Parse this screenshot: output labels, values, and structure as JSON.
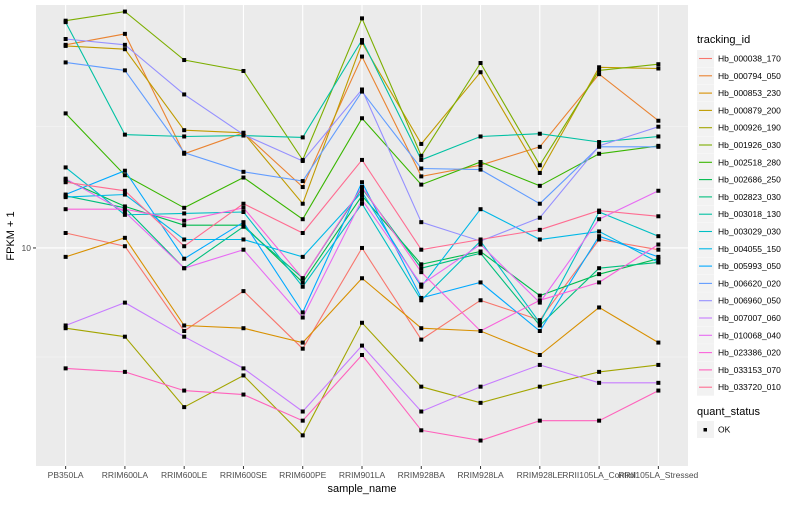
{
  "chart_data": {
    "type": "line",
    "title": "",
    "xlabel": "sample_name",
    "ylabel": "FPKM + 1",
    "yscale": "log10",
    "ylim": [
      2.85,
      40.5
    ],
    "yticks": [
      10
    ],
    "ytick_labels": [
      "10"
    ],
    "grid": true,
    "legend_position": "right",
    "categories": [
      "PB350LA",
      "RRIM600LA",
      "RRIM600LE",
      "RRIM600SE",
      "RRIM600PE",
      "RRIM901LA",
      "RRIM928BA",
      "RRIM928LA",
      "RRIM928LE",
      "RRII105LA_Control",
      "RRII105LA_Stressed"
    ],
    "legend": {
      "color_title": "tracking_id",
      "shape_title": "quant_status",
      "shape_entries": [
        "OK"
      ]
    },
    "series": [
      {
        "name": "Hb_000038_170",
        "color": "#F8766D",
        "values": [
          10.9,
          10.1,
          6.2,
          7.8,
          5.6,
          10.0,
          5.9,
          7.4,
          6.6,
          10.5,
          9.9
        ]
      },
      {
        "name": "Hb_000794_050",
        "color": "#EA8331",
        "values": [
          32.2,
          34.3,
          17.2,
          19.4,
          14.2,
          30.1,
          15.1,
          16.1,
          17.9,
          27.2,
          20.8
        ]
      },
      {
        "name": "Hb_000853_230",
        "color": "#D89000",
        "values": [
          9.5,
          10.6,
          6.4,
          6.3,
          5.8,
          8.4,
          6.3,
          6.2,
          5.4,
          7.1,
          5.8
        ]
      },
      {
        "name": "Hb_000879_200",
        "color": "#C09B00",
        "values": [
          32.0,
          31.4,
          19.7,
          19.4,
          12.9,
          32.6,
          18.2,
          27.5,
          15.4,
          28.3,
          28.1
        ]
      },
      {
        "name": "Hb_000926_190",
        "color": "#A3A500",
        "values": [
          6.3,
          6.0,
          4.0,
          4.8,
          3.4,
          6.5,
          4.5,
          4.1,
          4.5,
          4.9,
          5.1
        ]
      },
      {
        "name": "Hb_001926_030",
        "color": "#7CAE00",
        "values": [
          37.0,
          39.0,
          29.5,
          27.7,
          16.6,
          37.5,
          17.0,
          29.0,
          16.1,
          27.8,
          28.8
        ]
      },
      {
        "name": "Hb_002518_280",
        "color": "#39B600",
        "values": [
          21.7,
          15.2,
          12.6,
          15.0,
          11.8,
          21.1,
          14.4,
          16.4,
          14.3,
          17.2,
          18.0
        ]
      },
      {
        "name": "Hb_002686_250",
        "color": "#00BB4E",
        "values": [
          14.8,
          12.7,
          11.4,
          11.4,
          8.2,
          13.5,
          9.1,
          9.8,
          7.6,
          8.6,
          9.4
        ]
      },
      {
        "name": "Hb_002823_030",
        "color": "#00BF7D",
        "values": [
          13.5,
          12.6,
          8.9,
          11.3,
          8.4,
          14.1,
          8.9,
          9.7,
          6.4,
          8.9,
          9.2
        ]
      },
      {
        "name": "Hb_003018_130",
        "color": "#00C1A3",
        "values": [
          36.7,
          19.2,
          19.0,
          19.1,
          18.9,
          33.1,
          16.6,
          19.0,
          19.3,
          18.4,
          19.0
        ]
      },
      {
        "name": "Hb_003029_030",
        "color": "#00BFC4",
        "values": [
          15.9,
          12.1,
          12.2,
          12.3,
          8.0,
          12.9,
          7.4,
          10.4,
          6.5,
          12.3,
          10.7
        ]
      },
      {
        "name": "Hb_004055_150",
        "color": "#00B8E7",
        "values": [
          13.4,
          13.6,
          10.5,
          10.5,
          9.5,
          13.8,
          8.0,
          12.5,
          10.5,
          11.0,
          9.2
        ]
      },
      {
        "name": "Hb_005993_050",
        "color": "#00A9FF",
        "values": [
          13.6,
          15.6,
          9.4,
          11.6,
          6.9,
          14.6,
          7.5,
          8.2,
          6.2,
          10.7,
          9.5
        ]
      },
      {
        "name": "Hb_006620_020",
        "color": "#619CFF",
        "values": [
          29.1,
          27.8,
          17.3,
          15.5,
          14.7,
          24.6,
          15.8,
          15.7,
          12.9,
          17.9,
          17.9
        ]
      },
      {
        "name": "Hb_006960_050",
        "color": "#9590FF",
        "values": [
          33.3,
          32.2,
          24.2,
          19.2,
          16.5,
          24.9,
          11.6,
          10.4,
          11.9,
          18.0,
          20.1
        ]
      },
      {
        "name": "Hb_007007_060",
        "color": "#C77CFF",
        "values": [
          6.4,
          7.3,
          6.0,
          5.0,
          3.9,
          5.7,
          3.9,
          4.5,
          5.1,
          4.6,
          4.6
        ]
      },
      {
        "name": "Hb_010068_040",
        "color": "#E76BF3",
        "values": [
          14.9,
          12.3,
          8.9,
          9.9,
          6.7,
          13.2,
          8.1,
          10.2,
          7.3,
          11.8,
          13.9
        ]
      },
      {
        "name": "Hb_023386_020",
        "color": "#FA62DB",
        "values": [
          12.5,
          12.5,
          11.7,
          12.6,
          8.4,
          14.2,
          8.7,
          6.2,
          7.4,
          8.2,
          10.2
        ]
      },
      {
        "name": "Hb_033153_070",
        "color": "#FF62BC",
        "values": [
          5.0,
          4.9,
          4.4,
          4.3,
          3.7,
          5.4,
          3.5,
          3.3,
          3.7,
          3.7,
          4.4
        ]
      },
      {
        "name": "Hb_033720_010",
        "color": "#FF6C91",
        "values": [
          14.6,
          13.9,
          10.1,
          12.9,
          10.9,
          16.6,
          9.9,
          10.5,
          11.1,
          12.4,
          12.0
        ]
      }
    ]
  }
}
